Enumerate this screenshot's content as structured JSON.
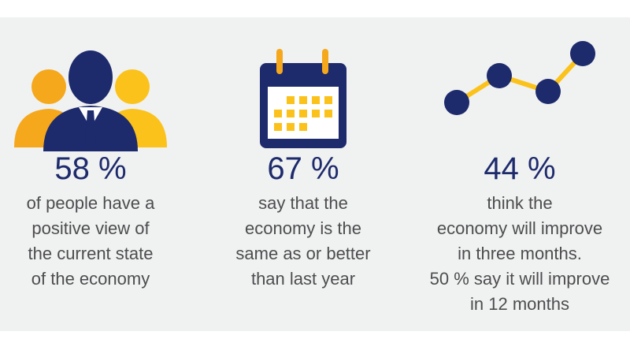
{
  "stats": [
    {
      "value": "58 %",
      "lines": [
        "of people have a",
        "positive view of",
        "the current state",
        "of the economy"
      ]
    },
    {
      "value": "67 %",
      "lines": [
        "say that the",
        "economy is the",
        "same as or better",
        "than last year"
      ]
    },
    {
      "value": "44 %",
      "lines": [
        "think the",
        "economy will improve",
        "in three months.",
        "50 % say it will improve",
        "in 12 months"
      ]
    }
  ]
}
